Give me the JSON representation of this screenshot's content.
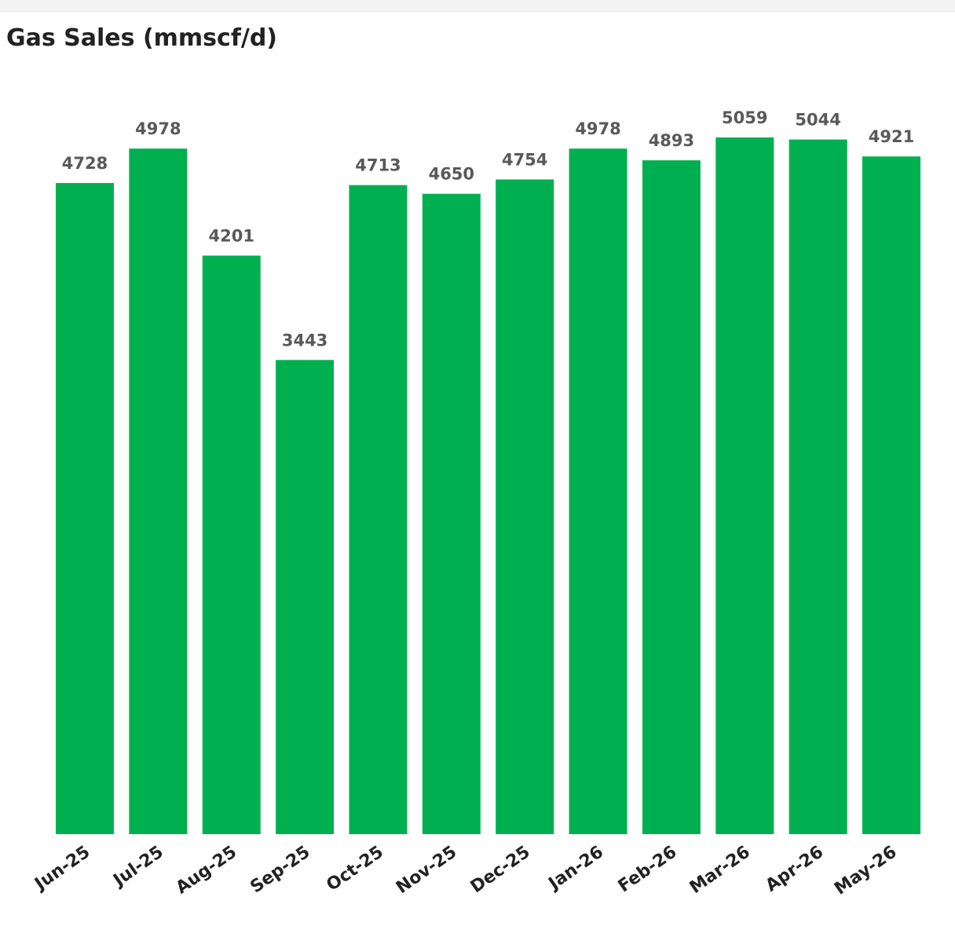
{
  "chart_data": {
    "type": "bar",
    "title": "Gas Sales (mmscf/d)",
    "categories": [
      "Jun-25",
      "Jul-25",
      "Aug-25",
      "Sep-25",
      "Oct-25",
      "Nov-25",
      "Dec-25",
      "Jan-26",
      "Feb-26",
      "Mar-26",
      "Apr-26",
      "May-26"
    ],
    "values": [
      4728,
      4978,
      4201,
      3443,
      4713,
      4650,
      4754,
      4978,
      4893,
      5059,
      5044,
      4921
    ],
    "color": "#00b050"
  }
}
